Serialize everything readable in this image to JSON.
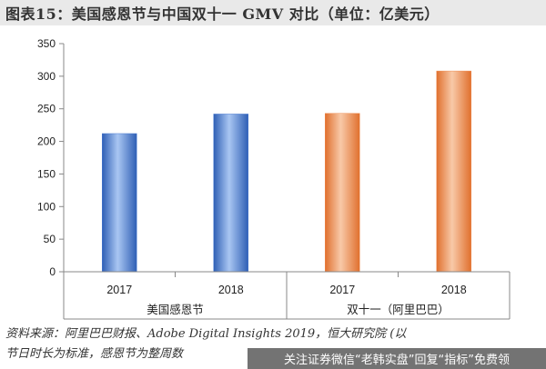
{
  "figure": {
    "title": "图表15：美国感恩节与中国双十一 GMV 对比（单位：亿美元）"
  },
  "chart_data": {
    "type": "bar",
    "ylim": [
      0,
      350
    ],
    "y_ticks": [
      0,
      50,
      100,
      150,
      200,
      250,
      300,
      350
    ],
    "grid": false,
    "legend": "none",
    "groups": [
      {
        "name": "美国感恩节",
        "color": "#4a7bd0",
        "categories": [
          "2017",
          "2018"
        ],
        "values": [
          212,
          242
        ]
      },
      {
        "name": "双十一（阿里巴巴）",
        "color": "#ee8a4f",
        "categories": [
          "2017",
          "2018"
        ],
        "values": [
          243,
          308
        ]
      }
    ]
  },
  "source": {
    "line1": "资料来源：阿里巴巴财报、Adobe Digital Insights 2019，恒大研究院 (以",
    "line2": "节日时长为标准，感恩节为整周数"
  },
  "watermark": {
    "text": "关注证券微信“老韩实盘”回复“指标”免费领"
  }
}
